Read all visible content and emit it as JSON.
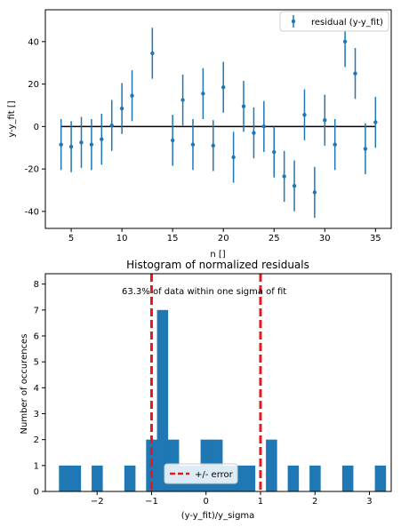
{
  "chart_data": [
    {
      "type": "scatter",
      "title": "",
      "xlabel": "n []",
      "ylabel": "y-y_fit []",
      "xlim": [
        2.45,
        36.55
      ],
      "ylim": [
        -48,
        55
      ],
      "xticks": [
        5,
        10,
        15,
        20,
        25,
        30,
        35
      ],
      "yticks": [
        -40,
        -20,
        0,
        20,
        40
      ],
      "grid": false,
      "legend_position": "top-right",
      "series": [
        {
          "name": "residual (y-y_fit)",
          "color": "#1f77b4",
          "marker": "point-with-errorbar",
          "yerr": 12,
          "x": [
            4,
            5,
            6,
            7,
            8,
            9,
            10,
            11,
            13,
            15,
            16,
            17,
            18,
            19,
            20,
            21,
            22,
            23,
            24,
            25,
            26,
            27,
            28,
            29,
            30,
            31,
            32,
            33,
            34,
            35
          ],
          "y": [
            -8.5,
            -9.5,
            -7.5,
            -8.5,
            -6,
            0.5,
            8.5,
            14.5,
            34.5,
            -6.5,
            12.5,
            -8.5,
            15.5,
            -9,
            18.5,
            -14.5,
            9.5,
            -3,
            0,
            -12,
            -23.5,
            -28,
            5.5,
            -31,
            3,
            -8.5,
            40,
            25,
            -10.5,
            2
          ]
        }
      ],
      "fit_line": {
        "y": 0,
        "x_range": [
          4,
          35
        ],
        "color": "#000000"
      }
    },
    {
      "type": "bar",
      "title": "Histogram  of normalized residuals",
      "xlabel": "(y-y_fit)/y_sigma",
      "ylabel": "Number of occurences",
      "xlim": [
        -2.95,
        3.4
      ],
      "ylim": [
        0,
        8.4
      ],
      "xticks": [
        -2,
        -1,
        0,
        1,
        2,
        3
      ],
      "yticks": [
        0,
        1,
        2,
        3,
        4,
        5,
        6,
        7,
        8
      ],
      "bin_width": 0.2,
      "annotation": "63.3% of data within one sigma of fit",
      "color": "#1f77b4",
      "bins": [
        {
          "left": -2.7,
          "count": 1
        },
        {
          "left": -2.5,
          "count": 1
        },
        {
          "left": -2.1,
          "count": 1
        },
        {
          "left": -1.5,
          "count": 1
        },
        {
          "left": -1.1,
          "count": 2
        },
        {
          "left": -0.9,
          "count": 7
        },
        {
          "left": -0.7,
          "count": 2
        },
        {
          "left": -0.5,
          "count": 1
        },
        {
          "left": -0.3,
          "count": 1
        },
        {
          "left": -0.1,
          "count": 2
        },
        {
          "left": 0.1,
          "count": 2
        },
        {
          "left": 0.3,
          "count": 1
        },
        {
          "left": 0.5,
          "count": 1
        },
        {
          "left": 0.7,
          "count": 1
        },
        {
          "left": 1.1,
          "count": 2
        },
        {
          "left": 1.5,
          "count": 1
        },
        {
          "left": 1.9,
          "count": 1
        },
        {
          "left": 2.5,
          "count": 1
        },
        {
          "left": 3.1,
          "count": 1
        }
      ],
      "error_lines": {
        "label": "+/- error",
        "x": [
          -1,
          1
        ],
        "color": "#e41a1c",
        "style": "dashed"
      },
      "legend_position": "bottom-center"
    }
  ]
}
